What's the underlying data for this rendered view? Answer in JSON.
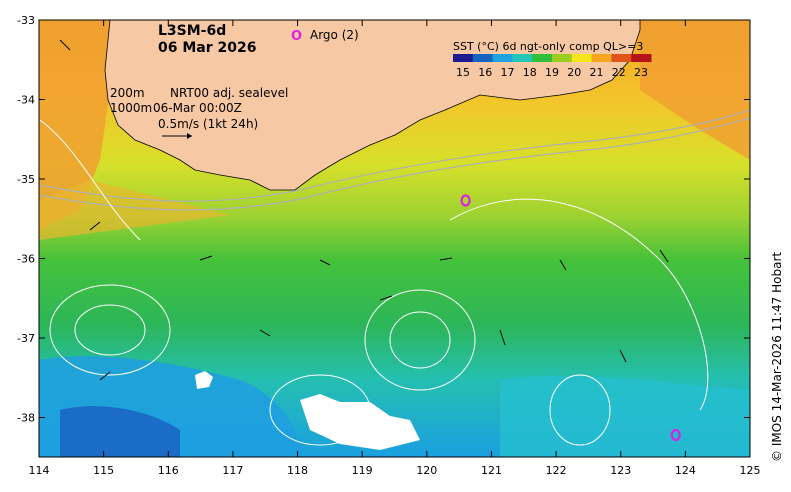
{
  "title": {
    "product": "L3SM-6d",
    "date": "06 Mar 2026"
  },
  "argo_label": "Argo (2)",
  "argo_floats": [
    {
      "lon": 120.6,
      "lat": -35.27
    },
    {
      "lon": 123.85,
      "lat": -38.22
    }
  ],
  "colorbar": {
    "title": "SST (°C) 6d ngt-only comp QL>=3",
    "ticks": [
      "15",
      "16",
      "17",
      "18",
      "19",
      "20",
      "21",
      "22",
      "23"
    ],
    "colors": [
      "#1b1b8f",
      "#1565c0",
      "#1fa3e0",
      "#22c7b8",
      "#2fbf3a",
      "#9ccc1f",
      "#f2e51a",
      "#f6a51f",
      "#e0561a",
      "#b5121b"
    ]
  },
  "legend_lines": {
    "depth1": "200m",
    "depth2": "1000m",
    "sealevel": "NRT00 adj. sealevel",
    "time": "06-Mar 00:00Z",
    "scale": "0.5m/s (1kt 24h)"
  },
  "axes": {
    "x_ticks": [
      "114",
      "115",
      "116",
      "117",
      "118",
      "119",
      "120",
      "121",
      "122",
      "123",
      "124",
      "125"
    ],
    "y_ticks": [
      "-33",
      "-34",
      "-35",
      "-36",
      "-37",
      "-38"
    ],
    "lon_range": [
      114,
      125
    ],
    "lat_range": [
      -38.5,
      -33
    ]
  },
  "credit": "© IMOS 14-Mar-2026 11:47 Hobart",
  "colors": {
    "land": "#f7c8a4",
    "argo": "#e020e0"
  }
}
